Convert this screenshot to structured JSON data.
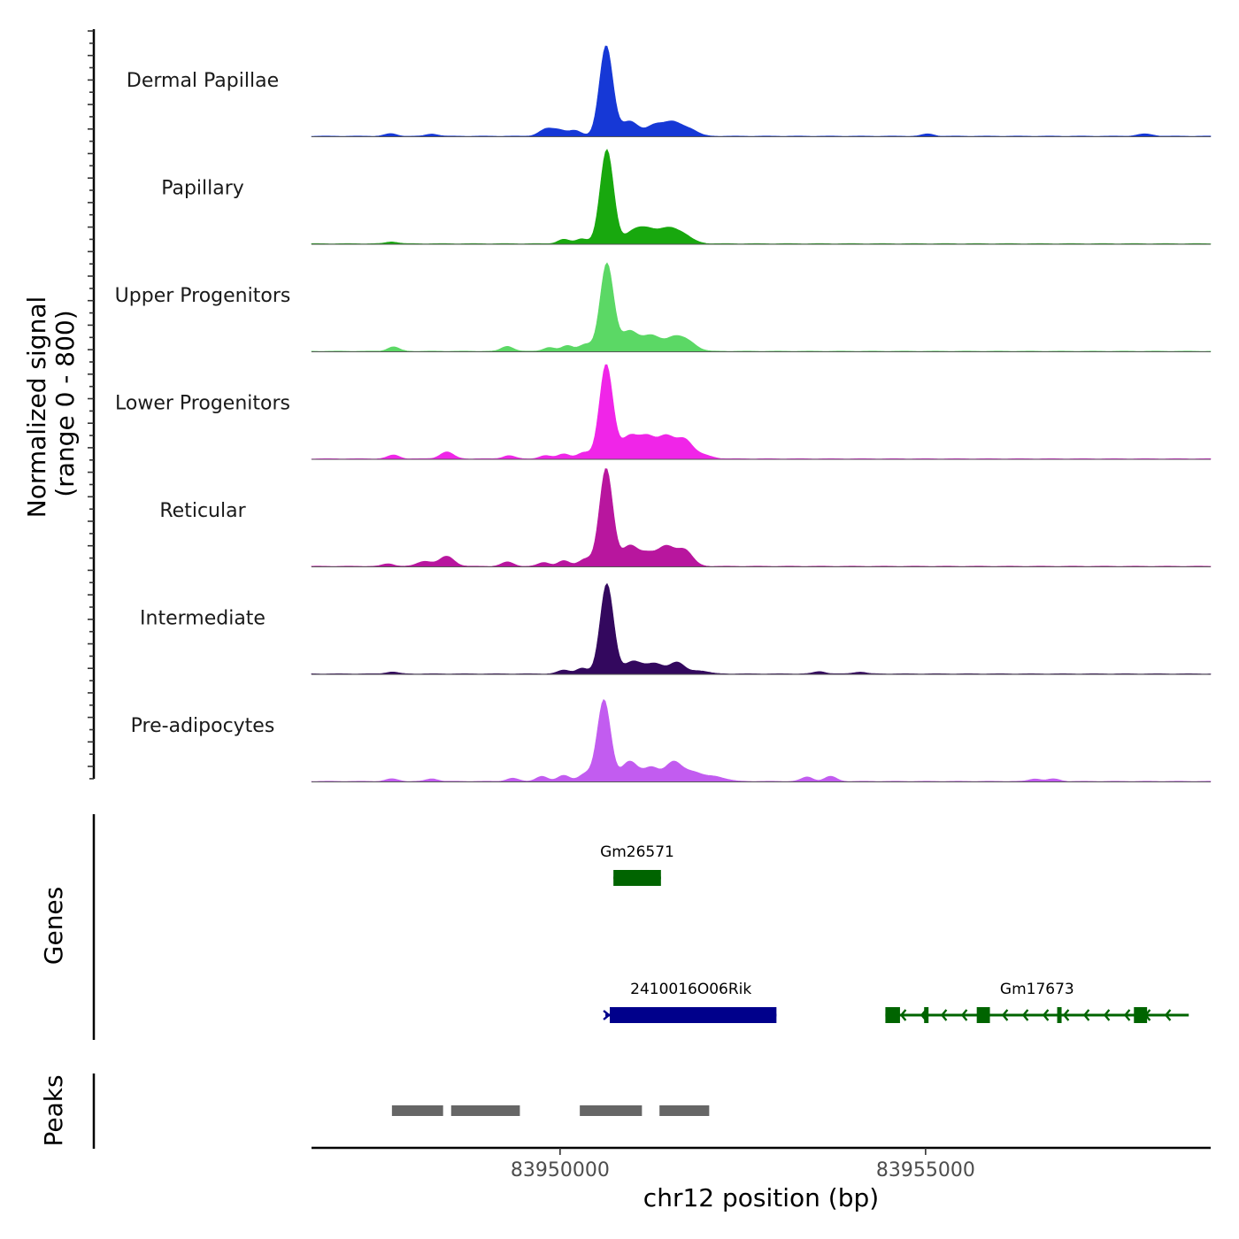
{
  "chart_data": {
    "type": "coverage",
    "chromosome": "chr12",
    "xlim": [
      83946600,
      83958900
    ],
    "xlabel": "chr12 position (bp)",
    "x_ticks": [
      83950000,
      83955000
    ],
    "x_tick_labels": [
      "83950000",
      "83955000"
    ],
    "ylabel_line1": "Normalized signal",
    "ylabel_line2": "(range 0 - 800)",
    "ylim": [
      0,
      800
    ],
    "genes_label": "Genes",
    "peaks_label": "Peaks",
    "tracks": [
      {
        "name": "Dermal Papillae",
        "color": "#1638d6",
        "peaks": [
          [
            83950630,
            720,
            90
          ],
          [
            83950200,
            45,
            90
          ],
          [
            83950000,
            40,
            80
          ],
          [
            83949820,
            60,
            100
          ],
          [
            83950950,
            120,
            120
          ],
          [
            83951300,
            90,
            110
          ],
          [
            83951530,
            100,
            110
          ],
          [
            83951750,
            60,
            120
          ],
          [
            83947680,
            20,
            80
          ],
          [
            83948250,
            18,
            80
          ],
          [
            83955030,
            18,
            80
          ],
          [
            83958000,
            18,
            100
          ]
        ]
      },
      {
        "name": "Papillary",
        "color": "#18a80e",
        "peaks": [
          [
            83950640,
            750,
            90
          ],
          [
            83950300,
            40,
            80
          ],
          [
            83950050,
            35,
            80
          ],
          [
            83951000,
            90,
            120
          ],
          [
            83951200,
            100,
            120
          ],
          [
            83951450,
            90,
            120
          ],
          [
            83951650,
            80,
            140
          ],
          [
            83947700,
            15,
            80
          ]
        ]
      },
      {
        "name": "Upper Progenitors",
        "color": "#5bd865",
        "peaks": [
          [
            83950640,
            700,
            90
          ],
          [
            83950350,
            55,
            90
          ],
          [
            83950100,
            45,
            80
          ],
          [
            83949850,
            30,
            80
          ],
          [
            83950950,
            160,
            120
          ],
          [
            83951250,
            120,
            120
          ],
          [
            83951550,
            100,
            120
          ],
          [
            83951750,
            70,
            120
          ],
          [
            83947720,
            35,
            80
          ],
          [
            83949280,
            40,
            80
          ]
        ]
      },
      {
        "name": "Lower Progenitors",
        "color": "#f025e8",
        "peaks": [
          [
            83950630,
            750,
            90
          ],
          [
            83950330,
            50,
            90
          ],
          [
            83950050,
            40,
            80
          ],
          [
            83949800,
            25,
            80
          ],
          [
            83950950,
            180,
            120
          ],
          [
            83951200,
            160,
            110
          ],
          [
            83951450,
            170,
            110
          ],
          [
            83951700,
            150,
            110
          ],
          [
            83951950,
            30,
            120
          ],
          [
            83947720,
            30,
            80
          ],
          [
            83948450,
            55,
            90
          ],
          [
            83949300,
            25,
            80
          ]
        ]
      },
      {
        "name": "Reticular",
        "color": "#b8169e",
        "peaks": [
          [
            83950630,
            780,
            90
          ],
          [
            83950350,
            60,
            90
          ],
          [
            83950050,
            45,
            80
          ],
          [
            83949780,
            30,
            80
          ],
          [
            83950950,
            160,
            110
          ],
          [
            83951200,
            100,
            110
          ],
          [
            83951450,
            150,
            110
          ],
          [
            83951700,
            130,
            110
          ],
          [
            83947650,
            20,
            80
          ],
          [
            83948150,
            40,
            100
          ],
          [
            83948450,
            80,
            100
          ],
          [
            83949280,
            35,
            80
          ]
        ]
      },
      {
        "name": "Intermediate",
        "color": "#33085e",
        "peaks": [
          [
            83950640,
            720,
            90
          ],
          [
            83950300,
            45,
            80
          ],
          [
            83950050,
            30,
            80
          ],
          [
            83951000,
            100,
            120
          ],
          [
            83951300,
            80,
            120
          ],
          [
            83951600,
            90,
            100
          ],
          [
            83951900,
            25,
            120
          ],
          [
            83947700,
            15,
            80
          ],
          [
            83953550,
            18,
            80
          ],
          [
            83954100,
            15,
            80
          ]
        ]
      },
      {
        "name": "Pre-adipocytes",
        "color": "#c25cf0",
        "peaks": [
          [
            83950600,
            650,
            90
          ],
          [
            83950350,
            60,
            90
          ],
          [
            83950050,
            50,
            80
          ],
          [
            83949750,
            40,
            80
          ],
          [
            83949350,
            25,
            80
          ],
          [
            83950950,
            160,
            110
          ],
          [
            83951250,
            110,
            110
          ],
          [
            83951550,
            150,
            110
          ],
          [
            83951800,
            70,
            120
          ],
          [
            83952100,
            40,
            150
          ],
          [
            83953380,
            35,
            80
          ],
          [
            83953700,
            40,
            80
          ],
          [
            83947700,
            20,
            80
          ],
          [
            83948250,
            20,
            80
          ],
          [
            83956500,
            20,
            80
          ],
          [
            83956750,
            20,
            80
          ]
        ]
      }
    ],
    "genes": [
      {
        "name": "Gm26571",
        "start": 83950730,
        "end": 83951380,
        "strand": "",
        "color": "#006400",
        "row": 0,
        "exons": [
          [
            83950730,
            83951380
          ]
        ]
      },
      {
        "name": "2410016O06Rik",
        "start": 83950620,
        "end": 83952960,
        "strand": "+",
        "color": "#00008b",
        "row": 1,
        "exons": [
          [
            83950680,
            83952960
          ]
        ]
      },
      {
        "name": "Gm17673",
        "start": 83954450,
        "end": 83958600,
        "strand": "-",
        "color": "#006400",
        "row": 1,
        "exons": [
          [
            83954450,
            83954650
          ],
          [
            83954980,
            83955040
          ],
          [
            83955700,
            83955880
          ],
          [
            83956800,
            83956860
          ],
          [
            83957850,
            83958030
          ]
        ]
      }
    ],
    "peak_regions": [
      [
        83947700,
        83948400
      ],
      [
        83948510,
        83949450
      ],
      [
        83950270,
        83951120
      ],
      [
        83951360,
        83952040
      ]
    ]
  }
}
